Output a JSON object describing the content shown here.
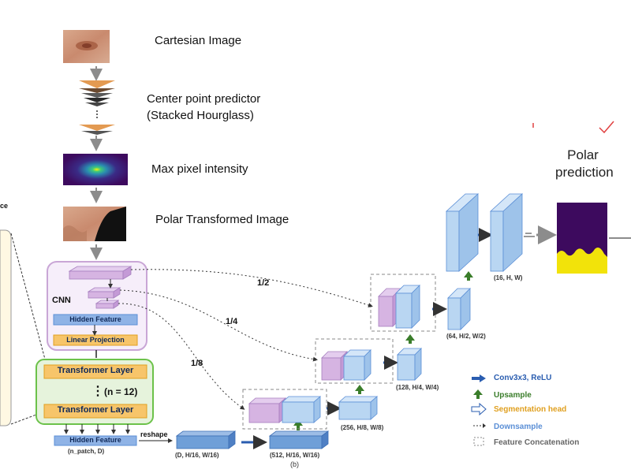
{
  "pipeline": {
    "steps": [
      {
        "label": "Cartesian Image"
      },
      {
        "label": "Center point predictor"
      },
      {
        "label": "(Stacked Hourglass)"
      },
      {
        "label": "Max pixel intensity"
      },
      {
        "label": "Polar Transformed Image"
      }
    ]
  },
  "left_fragment": {
    "text": "ce"
  },
  "encoder": {
    "cnn_label": "CNN",
    "hidden_feature_label": "Hidden Feature",
    "linear_projection_label": "Linear Projection",
    "transformer_label_top": "Transformer Layer",
    "transformer_count": "(n = 12)",
    "transformer_dots": "⋮",
    "transformer_label_bottom": "Transformer Layer",
    "hidden_feature_out_label": "Hidden Feature",
    "hidden_feature_out_dim": "(n_patch, D)",
    "reshape_label": "reshape"
  },
  "skip_labels": [
    "1/2",
    "1/4",
    "1/8"
  ],
  "decoder_dims": [
    "(D, H/16, W/16)",
    "(512, H/16, W/16)",
    "(256, H/8, W/8)",
    "(128, H/4, W/4)",
    "(64, H/2, W/2)",
    "(16, H, W)"
  ],
  "caption": "(b)",
  "polar_output": {
    "title_line1": "Polar",
    "title_line2": "prediction"
  },
  "legend": [
    {
      "text": "Conv3x3, ReLU",
      "color": "#2a5db0",
      "icon": "blue-arrow-icon"
    },
    {
      "text": "Upsample",
      "color": "#3a7d2a",
      "icon": "green-up-arrow-icon"
    },
    {
      "text": "Segmentation head",
      "color": "#e0a020",
      "icon": "hollow-arrow-icon"
    },
    {
      "text": "Downsample",
      "color": "#5b8fd6",
      "icon": "dashed-arrow-icon"
    },
    {
      "text": "Feature Concatenation",
      "color": "#666666",
      "icon": "dashed-box-icon"
    }
  ],
  "colors": {
    "arrow_gray": "#8c8c8c",
    "cnn_box_border": "#c9a6d6",
    "cnn_box_fill": "#f6eefa",
    "transformer_box_border": "#6cc24a",
    "transformer_box_fill": "#e6f3dc",
    "feature_blue": "#8fb3e6",
    "cube_blue": "#b9d6f2",
    "cube_purple": "#d6b4e2",
    "polar_purple": "#3d0a5e",
    "polar_yellow": "#f2e30a",
    "tag_orange": "#f7c56a"
  }
}
